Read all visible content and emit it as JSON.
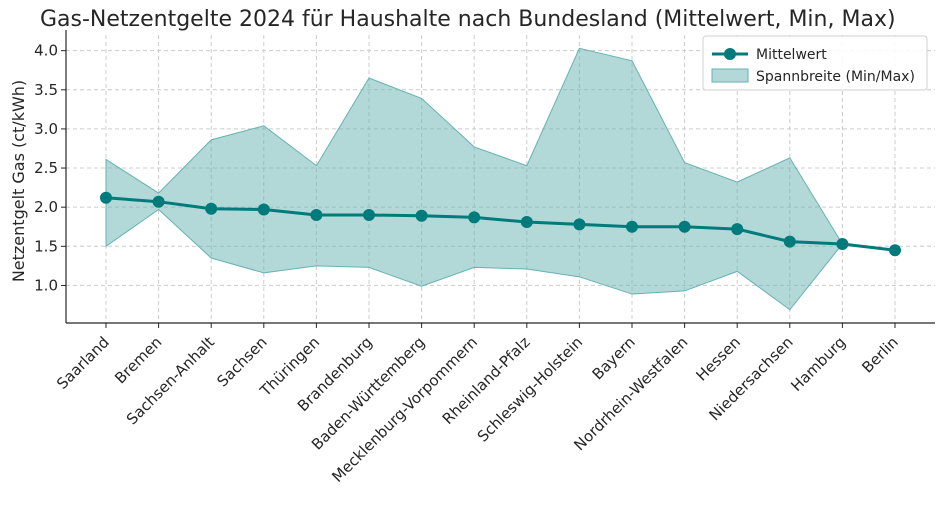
{
  "chart_data": {
    "type": "line",
    "title": "Gas-Netzentgelte 2024 für Haushalte nach Bundesland (Mittelwert, Min, Max)",
    "xlabel": "",
    "ylabel": "Netzentgelt Gas (ct/kWh)",
    "ylim": [
      0.52,
      4.2
    ],
    "yticks": [
      1.0,
      1.5,
      2.0,
      2.5,
      3.0,
      3.5,
      4.0
    ],
    "ytick_labels": [
      "1.0",
      "1.5",
      "2.0",
      "2.5",
      "3.0",
      "3.5",
      "4.0"
    ],
    "grid": true,
    "legend_position": "top-right",
    "categories": [
      "Saarland",
      "Bremen",
      "Sachsen-Anhalt",
      "Sachsen",
      "Thüringen",
      "Brandenburg",
      "Baden-Württemberg",
      "Mecklenburg-Vorpommern",
      "Rheinland-Pfalz",
      "Schleswig-Holstein",
      "Bayern",
      "Nordrhein-Westfalen",
      "Hessen",
      "Niedersachsen",
      "Hamburg",
      "Berlin"
    ],
    "series": [
      {
        "name": "Mittelwert",
        "type": "line",
        "color": "#007b7b",
        "values": [
          2.12,
          2.07,
          1.98,
          1.97,
          1.9,
          1.9,
          1.89,
          1.87,
          1.81,
          1.78,
          1.75,
          1.75,
          1.72,
          1.56,
          1.53,
          1.45
        ]
      },
      {
        "name": "Spannbreite (Min/Max)",
        "type": "range",
        "color": "#66b2b2",
        "min": [
          1.5,
          1.97,
          1.35,
          1.16,
          1.25,
          1.23,
          0.99,
          1.23,
          1.21,
          1.11,
          0.89,
          0.93,
          1.18,
          0.69,
          1.53,
          1.45
        ],
        "max": [
          2.61,
          2.18,
          2.86,
          3.04,
          2.53,
          3.65,
          3.39,
          2.77,
          2.53,
          4.03,
          3.87,
          2.57,
          2.32,
          2.63,
          1.53,
          1.45
        ]
      }
    ]
  }
}
